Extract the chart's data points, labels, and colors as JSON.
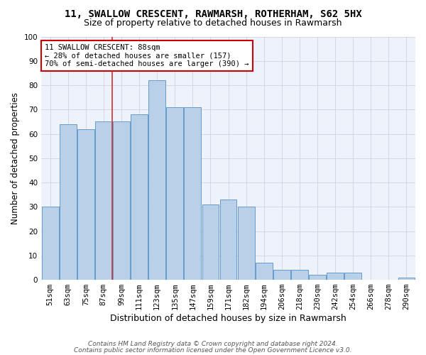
{
  "title1": "11, SWALLOW CRESCENT, RAWMARSH, ROTHERHAM, S62 5HX",
  "title2": "Size of property relative to detached houses in Rawmarsh",
  "xlabel": "Distribution of detached houses by size in Rawmarsh",
  "ylabel": "Number of detached properties",
  "footer1": "Contains HM Land Registry data © Crown copyright and database right 2024.",
  "footer2": "Contains public sector information licensed under the Open Government Licence v3.0.",
  "bar_labels": [
    "51sqm",
    "63sqm",
    "75sqm",
    "87sqm",
    "99sqm",
    "111sqm",
    "123sqm",
    "135sqm",
    "147sqm",
    "159sqm",
    "171sqm",
    "182sqm",
    "194sqm",
    "206sqm",
    "218sqm",
    "230sqm",
    "242sqm",
    "254sqm",
    "266sqm",
    "278sqm",
    "290sqm"
  ],
  "bar_values": [
    30,
    64,
    62,
    65,
    65,
    68,
    82,
    71,
    71,
    31,
    33,
    30,
    7,
    4,
    4,
    2,
    3,
    3,
    0,
    0,
    1
  ],
  "bar_color": "#b8d0e8",
  "bar_edge_color": "#6699cc",
  "annotation_line1": "11 SWALLOW CRESCENT: 88sqm",
  "annotation_line2": "← 28% of detached houses are smaller (157)",
  "annotation_line3": "70% of semi-detached houses are larger (390) →",
  "annotation_box_facecolor": "#ffffff",
  "annotation_box_edgecolor": "#cc0000",
  "vline_x": 3.5,
  "vline_color": "#cc3333",
  "ylim": [
    0,
    100
  ],
  "yticks": [
    0,
    10,
    20,
    30,
    40,
    50,
    60,
    70,
    80,
    90,
    100
  ],
  "grid_color": "#ccccdd",
  "bg_color": "#eef2fb",
  "title1_fontsize": 10,
  "title2_fontsize": 9,
  "xlabel_fontsize": 9,
  "ylabel_fontsize": 8.5,
  "tick_fontsize": 7.5,
  "annotation_fontsize": 7.5,
  "footer_fontsize": 6.5
}
